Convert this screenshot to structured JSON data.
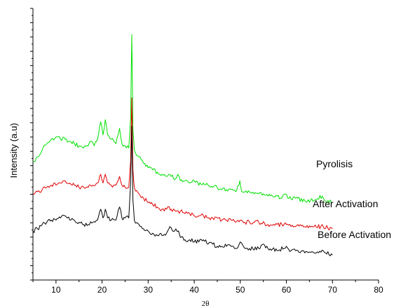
{
  "chart_data": {
    "type": "line",
    "title": "",
    "xlabel": "2θ",
    "ylabel": "Intensity (a.u)",
    "xlim": [
      5,
      80
    ],
    "ylim": [
      0,
      1
    ],
    "x_ticks": [
      "10",
      "20",
      "30",
      "40",
      "50",
      "60",
      "70",
      "80"
    ],
    "y_ticks_labeled": false,
    "grid": false,
    "legend": "none",
    "series": [
      {
        "name": "Pyrolisis",
        "color": "#00e000",
        "points": [
          [
            5,
            0.4
          ],
          [
            6,
            0.42
          ],
          [
            7,
            0.45
          ],
          [
            8,
            0.48
          ],
          [
            9,
            0.5
          ],
          [
            10,
            0.51
          ],
          [
            11,
            0.5
          ],
          [
            12,
            0.5
          ],
          [
            13,
            0.49
          ],
          [
            14,
            0.48
          ],
          [
            15,
            0.47
          ],
          [
            16,
            0.46
          ],
          [
            17,
            0.47
          ],
          [
            17.8,
            0.49
          ],
          [
            18.3,
            0.47
          ],
          [
            19,
            0.5
          ],
          [
            19.7,
            0.58
          ],
          [
            20.2,
            0.52
          ],
          [
            20.7,
            0.59
          ],
          [
            21.2,
            0.52
          ],
          [
            22,
            0.5
          ],
          [
            23,
            0.48
          ],
          [
            23.8,
            0.55
          ],
          [
            24.3,
            0.48
          ],
          [
            25,
            0.47
          ],
          [
            25.8,
            0.46
          ],
          [
            26.2,
            0.6
          ],
          [
            26.45,
            0.98
          ],
          [
            26.7,
            0.55
          ],
          [
            27,
            0.45
          ],
          [
            28,
            0.42
          ],
          [
            29,
            0.39
          ],
          [
            30,
            0.37
          ],
          [
            31,
            0.36
          ],
          [
            32,
            0.35
          ],
          [
            33,
            0.34
          ],
          [
            34,
            0.33
          ],
          [
            35,
            0.33
          ],
          [
            36,
            0.32
          ],
          [
            36.4,
            0.34
          ],
          [
            37,
            0.31
          ],
          [
            38,
            0.31
          ],
          [
            39,
            0.3
          ],
          [
            40,
            0.31
          ],
          [
            41,
            0.29
          ],
          [
            42,
            0.3
          ],
          [
            43,
            0.29
          ],
          [
            44,
            0.28
          ],
          [
            45,
            0.28
          ],
          [
            46,
            0.27
          ],
          [
            47,
            0.27
          ],
          [
            48,
            0.27
          ],
          [
            49,
            0.26
          ],
          [
            49.9,
            0.31
          ],
          [
            50.3,
            0.26
          ],
          [
            51,
            0.26
          ],
          [
            52,
            0.26
          ],
          [
            53,
            0.25
          ],
          [
            54,
            0.25
          ],
          [
            55,
            0.25
          ],
          [
            56,
            0.24
          ],
          [
            57,
            0.24
          ],
          [
            58,
            0.24
          ],
          [
            59,
            0.23
          ],
          [
            59.8,
            0.25
          ],
          [
            60.3,
            0.23
          ],
          [
            62,
            0.23
          ],
          [
            64,
            0.22
          ],
          [
            66,
            0.22
          ],
          [
            67.8,
            0.24
          ],
          [
            68.3,
            0.22
          ],
          [
            70,
            0.21
          ]
        ]
      },
      {
        "name": "After Activation",
        "color": "#e00000",
        "points": [
          [
            5,
            0.25
          ],
          [
            6,
            0.26
          ],
          [
            7,
            0.27
          ],
          [
            8,
            0.28
          ],
          [
            9,
            0.29
          ],
          [
            10,
            0.29
          ],
          [
            11,
            0.3
          ],
          [
            12,
            0.31
          ],
          [
            13,
            0.3
          ],
          [
            14,
            0.29
          ],
          [
            15,
            0.28
          ],
          [
            16,
            0.28
          ],
          [
            17,
            0.28
          ],
          [
            18,
            0.29
          ],
          [
            19,
            0.3
          ],
          [
            19.7,
            0.34
          ],
          [
            20.2,
            0.3
          ],
          [
            20.7,
            0.34
          ],
          [
            21.2,
            0.3
          ],
          [
            22,
            0.29
          ],
          [
            23,
            0.29
          ],
          [
            23.8,
            0.33
          ],
          [
            24.3,
            0.29
          ],
          [
            25,
            0.28
          ],
          [
            25.8,
            0.28
          ],
          [
            26.2,
            0.4
          ],
          [
            26.45,
            0.69
          ],
          [
            26.7,
            0.36
          ],
          [
            27,
            0.28
          ],
          [
            28,
            0.25
          ],
          [
            29,
            0.23
          ],
          [
            30,
            0.21
          ],
          [
            31,
            0.2
          ],
          [
            32,
            0.19
          ],
          [
            33,
            0.18
          ],
          [
            34,
            0.18
          ],
          [
            34.6,
            0.19
          ],
          [
            35,
            0.18
          ],
          [
            36,
            0.17
          ],
          [
            37,
            0.17
          ],
          [
            38,
            0.16
          ],
          [
            39,
            0.16
          ],
          [
            40,
            0.15
          ],
          [
            41,
            0.15
          ],
          [
            42,
            0.15
          ],
          [
            43,
            0.14
          ],
          [
            44,
            0.14
          ],
          [
            45,
            0.14
          ],
          [
            46,
            0.13
          ],
          [
            47,
            0.13
          ],
          [
            48,
            0.13
          ],
          [
            49,
            0.12
          ],
          [
            50,
            0.13
          ],
          [
            51,
            0.12
          ],
          [
            52,
            0.12
          ],
          [
            54,
            0.12
          ],
          [
            56,
            0.11
          ],
          [
            58,
            0.11
          ],
          [
            60,
            0.11
          ],
          [
            62,
            0.1
          ],
          [
            64,
            0.1
          ],
          [
            66,
            0.1
          ],
          [
            68,
            0.1
          ],
          [
            70,
            0.09
          ]
        ]
      },
      {
        "name": "Before Activation",
        "color": "#000000",
        "points": [
          [
            5,
            0.08
          ],
          [
            6,
            0.09
          ],
          [
            7,
            0.11
          ],
          [
            8,
            0.12
          ],
          [
            9,
            0.13
          ],
          [
            10,
            0.13
          ],
          [
            11,
            0.14
          ],
          [
            12,
            0.15
          ],
          [
            13,
            0.13
          ],
          [
            14,
            0.13
          ],
          [
            15,
            0.12
          ],
          [
            16,
            0.11
          ],
          [
            17,
            0.11
          ],
          [
            18,
            0.12
          ],
          [
            19,
            0.13
          ],
          [
            19.7,
            0.18
          ],
          [
            20.2,
            0.14
          ],
          [
            20.7,
            0.18
          ],
          [
            21.2,
            0.14
          ],
          [
            22,
            0.13
          ],
          [
            23,
            0.13
          ],
          [
            23.8,
            0.19
          ],
          [
            24.3,
            0.14
          ],
          [
            25,
            0.14
          ],
          [
            25.8,
            0.14
          ],
          [
            26.2,
            0.3
          ],
          [
            26.45,
            0.56
          ],
          [
            26.7,
            0.22
          ],
          [
            27,
            0.13
          ],
          [
            28,
            0.11
          ],
          [
            29,
            0.09
          ],
          [
            30,
            0.08
          ],
          [
            31,
            0.07
          ],
          [
            32,
            0.06
          ],
          [
            33,
            0.06
          ],
          [
            34,
            0.07
          ],
          [
            34.7,
            0.1
          ],
          [
            35.3,
            0.08
          ],
          [
            36,
            0.09
          ],
          [
            36.6,
            0.08
          ],
          [
            37,
            0.05
          ],
          [
            38,
            0.04
          ],
          [
            39,
            0.04
          ],
          [
            40,
            0.03
          ],
          [
            41,
            0.03
          ],
          [
            42,
            0.04
          ],
          [
            43,
            0.02
          ],
          [
            44,
            0.02
          ],
          [
            45,
            0.01
          ],
          [
            46,
            0.01
          ],
          [
            47,
            0.01
          ],
          [
            48,
            0.01
          ],
          [
            49,
            0.0
          ],
          [
            50,
            0.03
          ],
          [
            51,
            0.0
          ],
          [
            52,
            0.0
          ],
          [
            54,
            0.0
          ],
          [
            55,
            0.02
          ],
          [
            56,
            0.0
          ],
          [
            58,
            -0.01
          ],
          [
            60,
            0.01
          ],
          [
            61,
            -0.01
          ],
          [
            62,
            -0.01
          ],
          [
            64,
            -0.02
          ],
          [
            66,
            -0.02
          ],
          [
            68,
            -0.01
          ],
          [
            70,
            -0.03
          ]
        ]
      }
    ],
    "series_labels": [
      "Pyrolisis",
      "After Activation",
      "Before Activation"
    ]
  }
}
